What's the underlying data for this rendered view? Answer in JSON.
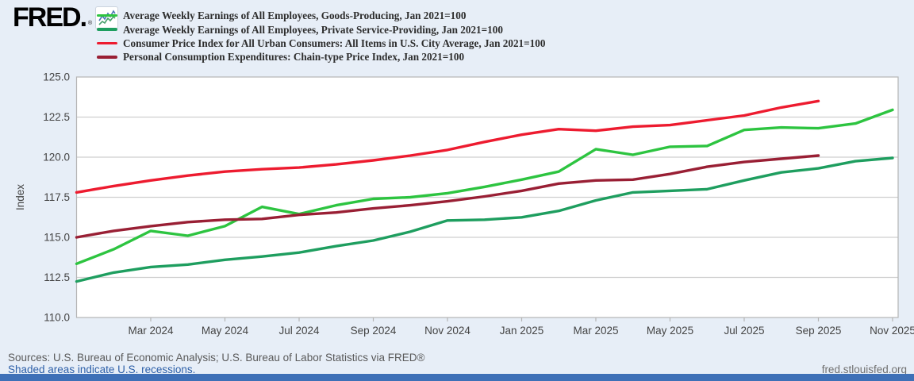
{
  "header": {
    "logo_text": "FRED",
    "logo_reg": "®"
  },
  "footer": {
    "sources_line": "Sources: U.S. Bureau of Economic Analysis; U.S. Bureau of Labor Statistics via FRED®",
    "recession_note": "Shaded areas indicate U.S. recessions.",
    "site_link": "fred.stlouisfed.org"
  },
  "icons": {
    "sparkline_icon": "fred-sparkline-icon"
  },
  "colors": {
    "background": "#e7eef7",
    "plot_background": "#ffffff",
    "gridline": "#cfcfcf",
    "plot_border": "#b5b5b5",
    "axis_text": "#444444",
    "link_blue": "#2c5fa8",
    "bottom_bar_blue": "#3e70b7"
  },
  "chart_data": {
    "type": "line",
    "title": "",
    "ylabel": "Index",
    "xlabel": "",
    "grid": "horizontal",
    "legend_position": "top-left",
    "ylim": [
      110,
      125
    ],
    "xlim_months": [
      0,
      22.15
    ],
    "y_ticks": [
      {
        "v": 110.0,
        "label": "110.0"
      },
      {
        "v": 112.5,
        "label": "112.5"
      },
      {
        "v": 115.0,
        "label": "115.0"
      },
      {
        "v": 117.5,
        "label": "117.5"
      },
      {
        "v": 120.0,
        "label": "120.0"
      },
      {
        "v": 122.5,
        "label": "122.5"
      },
      {
        "v": 125.0,
        "label": "125.0"
      }
    ],
    "x_ticks": [
      {
        "m": 2,
        "label": "Mar 2024"
      },
      {
        "m": 4,
        "label": "May 2024"
      },
      {
        "m": 6,
        "label": "Jul 2024"
      },
      {
        "m": 8,
        "label": "Sep 2024"
      },
      {
        "m": 10,
        "label": "Nov 2024"
      },
      {
        "m": 12,
        "label": "Jan 2025"
      },
      {
        "m": 14,
        "label": "Mar 2025"
      },
      {
        "m": 16,
        "label": "May 2025"
      },
      {
        "m": 18,
        "label": "Jul 2025"
      },
      {
        "m": 20,
        "label": "Sep 2025"
      },
      {
        "m": 22,
        "label": "Nov 2025"
      }
    ],
    "x_start": "Jan 2024",
    "series": [
      {
        "name": "Average Weekly Earnings of All Employees, Goods-Producing, Jan 2021=100",
        "color": "#2dc440",
        "m_start": 0,
        "values": [
          113.35,
          114.25,
          115.4,
          115.1,
          115.7,
          116.9,
          116.45,
          117.0,
          117.4,
          117.5,
          117.75,
          118.15,
          118.6,
          119.1,
          120.5,
          120.15,
          120.65,
          120.7,
          121.7,
          121.85,
          121.8,
          122.1,
          122.95
        ]
      },
      {
        "name": "Average Weekly Earnings of All Employees, Private Service-Providing, Jan 2021=100",
        "color": "#1e9e5f",
        "m_start": 0,
        "values": [
          112.25,
          112.8,
          113.15,
          113.3,
          113.6,
          113.8,
          114.05,
          114.45,
          114.8,
          115.35,
          116.05,
          116.1,
          116.25,
          116.65,
          117.3,
          117.8,
          117.9,
          118.0,
          118.55,
          119.05,
          119.3,
          119.75,
          119.95
        ]
      },
      {
        "name": "Consumer Price Index for All Urban Consumers: All Items in U.S. City Average, Jan 2021=100",
        "color": "#ed1b2f",
        "m_start": 0,
        "values": [
          117.8,
          118.2,
          118.55,
          118.85,
          119.1,
          119.25,
          119.35,
          119.55,
          119.8,
          120.1,
          120.45,
          120.95,
          121.4,
          121.75,
          121.65,
          121.9,
          122.0,
          122.3,
          122.6,
          123.1,
          123.5
        ]
      },
      {
        "name": "Personal Consumption Expenditures: Chain-type Price Index, Jan 2021=100",
        "color": "#991f34",
        "m_start": 0,
        "values": [
          115.0,
          115.4,
          115.7,
          115.95,
          116.1,
          116.15,
          116.4,
          116.55,
          116.8,
          117.0,
          117.25,
          117.55,
          117.9,
          118.35,
          118.55,
          118.6,
          118.95,
          119.4,
          119.7,
          119.9,
          120.1
        ]
      }
    ]
  }
}
